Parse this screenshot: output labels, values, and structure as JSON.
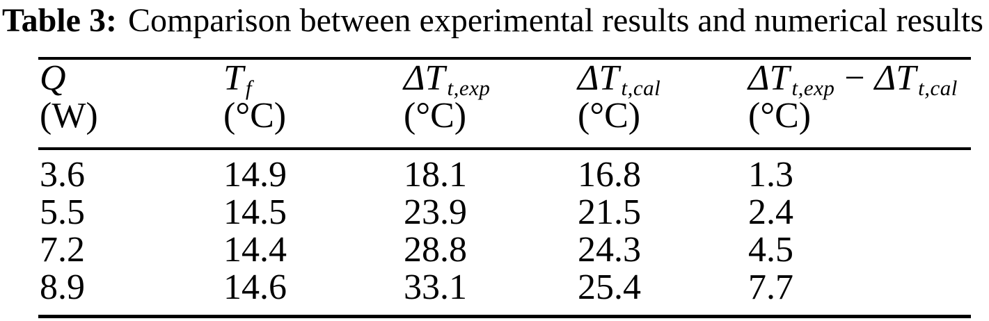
{
  "page": {
    "background_color": "#ffffff",
    "text_color": "#000000"
  },
  "title": {
    "label": "Table 3:",
    "text": "Comparison between experimental results and numerical results"
  },
  "table": {
    "columns": [
      {
        "symbol": "Q",
        "sub": "",
        "unit": "(W)"
      },
      {
        "symbol": "T",
        "sub": "f",
        "unit": "(°C)"
      },
      {
        "symbol": "ΔT",
        "sub": "t,exp",
        "unit": "(°C)"
      },
      {
        "symbol": "ΔT",
        "sub": "t,cal",
        "unit": "(°C)"
      },
      {
        "symbol": "ΔT",
        "sub": "t,exp",
        "operator": "−",
        "symbol2": "ΔT",
        "sub2": "t,cal",
        "unit": "(°C)"
      }
    ],
    "rows": [
      [
        "3.6",
        "14.9",
        "18.1",
        "16.8",
        "1.3"
      ],
      [
        "5.5",
        "14.5",
        "23.9",
        "21.5",
        "2.4"
      ],
      [
        "7.2",
        "14.4",
        "28.8",
        "24.3",
        "4.5"
      ],
      [
        "8.9",
        "14.6",
        "33.1",
        "25.4",
        "7.7"
      ]
    ]
  },
  "chart_data": {
    "type": "table",
    "title": "Table 3: Comparison between experimental results and numerical results",
    "columns": [
      "Q (W)",
      "T_f (°C)",
      "ΔT_t,exp (°C)",
      "ΔT_t,cal (°C)",
      "ΔT_t,exp − ΔT_t,cal (°C)"
    ],
    "rows": [
      [
        3.6,
        14.9,
        18.1,
        16.8,
        1.3
      ],
      [
        5.5,
        14.5,
        23.9,
        21.5,
        2.4
      ],
      [
        7.2,
        14.4,
        28.8,
        24.3,
        4.5
      ],
      [
        8.9,
        14.6,
        33.1,
        25.4,
        7.7
      ]
    ]
  }
}
